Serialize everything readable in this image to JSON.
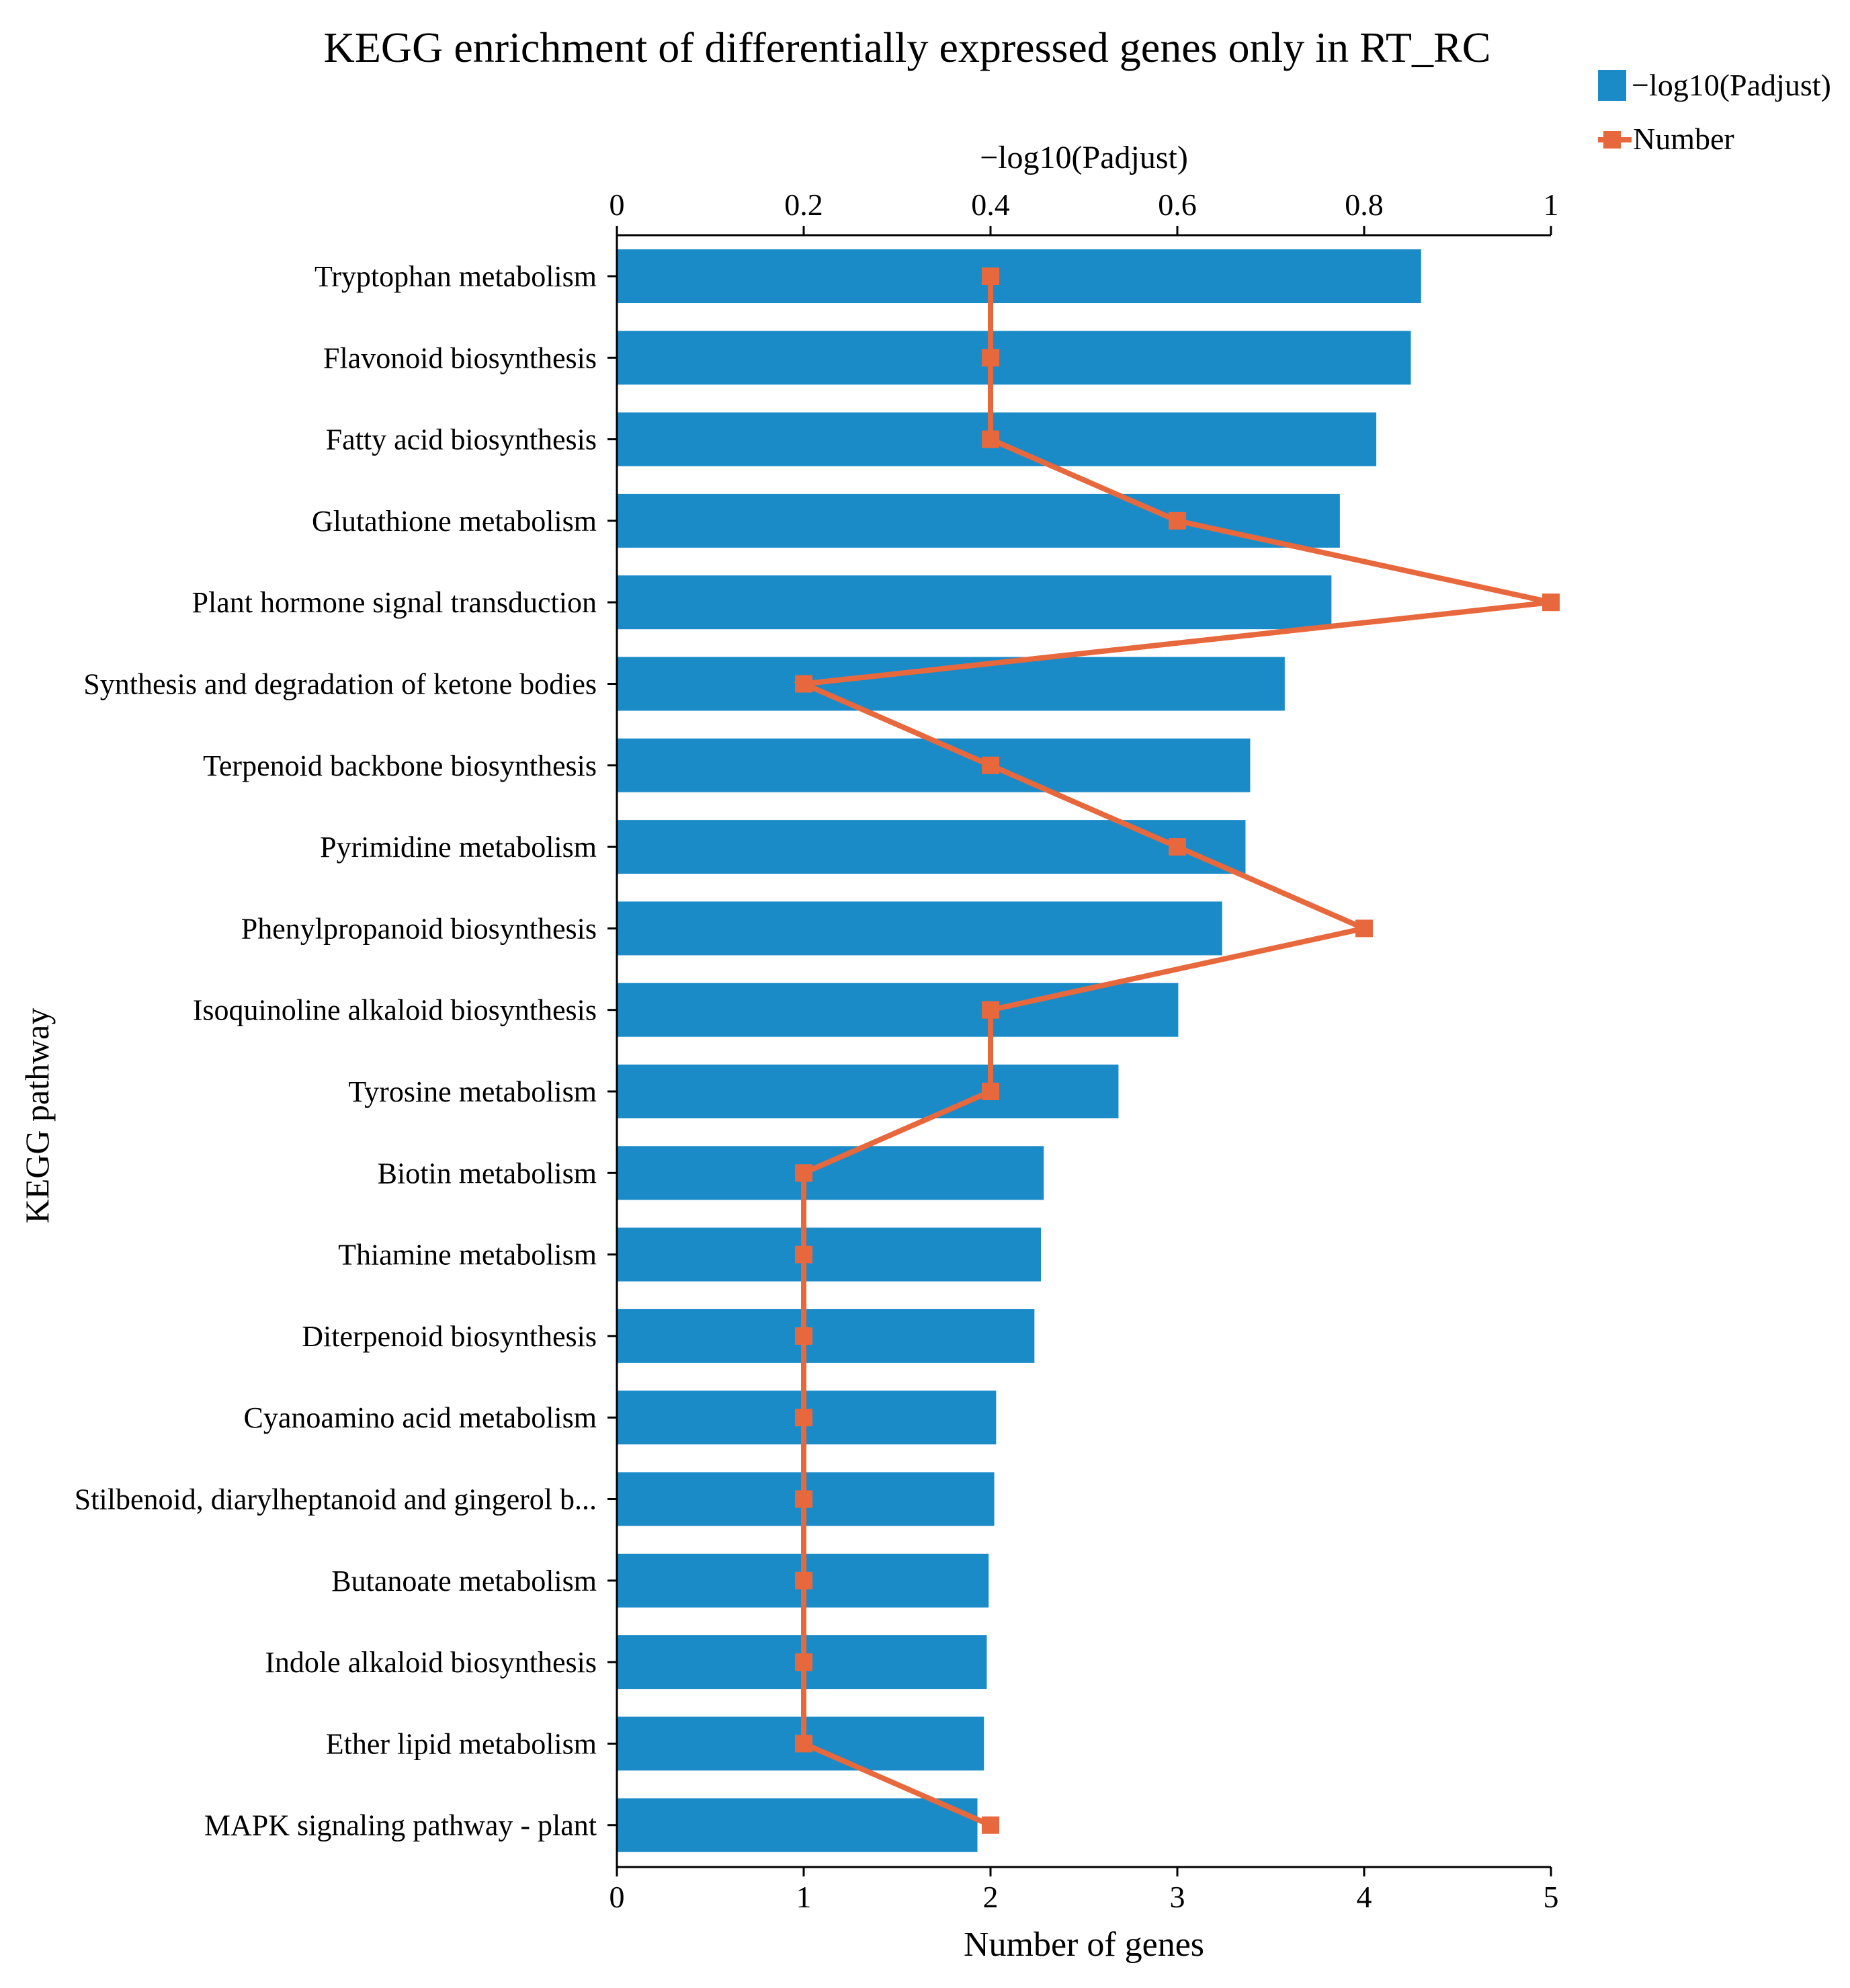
{
  "chart_data": {
    "type": "bar",
    "title": "KEGG enrichment of differentially expressed genes only in RT_RC",
    "ylabel": "KEGG pathway",
    "top_axis": {
      "label": "−log10(Padjust)",
      "range": [
        0,
        1
      ],
      "ticks": [
        "0",
        "0.2",
        "0.4",
        "0.6",
        "0.8",
        "1"
      ]
    },
    "bottom_axis": {
      "label": "Number of genes",
      "range": [
        0,
        5
      ],
      "ticks": [
        "0",
        "1",
        "2",
        "3",
        "4",
        "5"
      ]
    },
    "categories": [
      "Tryptophan metabolism",
      "Flavonoid biosynthesis",
      "Fatty acid biosynthesis",
      "Glutathione metabolism",
      "Plant hormone signal transduction",
      "Synthesis and degradation of ketone bodies",
      "Terpenoid backbone biosynthesis",
      "Pyrimidine metabolism",
      "Phenylpropanoid biosynthesis",
      "Isoquinoline alkaloid biosynthesis",
      "Tyrosine metabolism",
      "Biotin metabolism",
      "Thiamine metabolism",
      "Diterpenoid biosynthesis",
      "Cyanoamino acid metabolism",
      "Stilbenoid, diarylheptanoid and gingerol b...",
      "Butanoate metabolism",
      "Indole alkaloid biosynthesis",
      "Ether lipid metabolism",
      "MAPK signaling pathway - plant"
    ],
    "series": [
      {
        "name": "−log10(Padjust)",
        "type": "bar",
        "axis": "top",
        "color": "#1B8BC8",
        "values": [
          0.861,
          0.85,
          0.813,
          0.774,
          0.765,
          0.715,
          0.678,
          0.673,
          0.648,
          0.601,
          0.537,
          0.457,
          0.454,
          0.447,
          0.406,
          0.404,
          0.398,
          0.396,
          0.393,
          0.386
        ]
      },
      {
        "name": "Number",
        "type": "line",
        "axis": "bottom",
        "color": "#E8683D",
        "values": [
          2,
          2,
          2,
          3,
          5,
          1,
          2,
          3,
          4,
          2,
          2,
          1,
          1,
          1,
          1,
          1,
          1,
          1,
          1,
          2
        ]
      }
    ],
    "legend": {
      "position": "top-right",
      "entries": [
        "−log10(Padjust)",
        "Number"
      ]
    }
  }
}
